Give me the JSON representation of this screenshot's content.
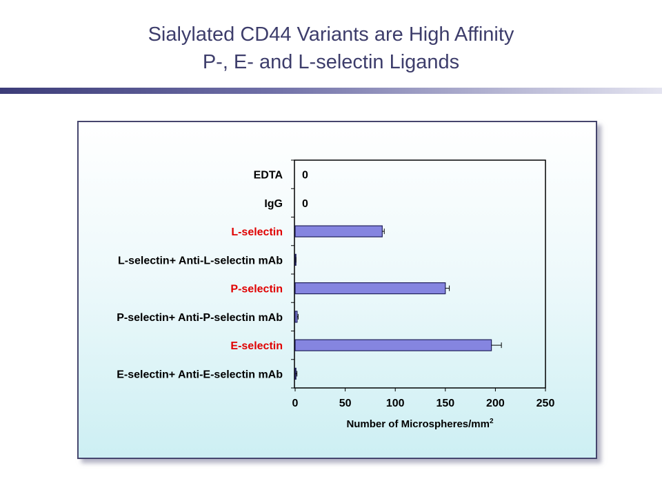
{
  "slide": {
    "title_line1": "Sialylated CD44 Variants are High Affinity",
    "title_line2": "P-, E- and L-selectin Ligands"
  },
  "colors": {
    "title": "#3d3d6b",
    "bar_fill": "#8585e0",
    "bar_stroke": "#20205a",
    "label_black": "#000000",
    "label_red": "#e00000"
  },
  "chart_data": {
    "type": "bar",
    "orientation": "horizontal",
    "categories": [
      {
        "label": "EDTA",
        "value": 0,
        "error": 0,
        "color": "black",
        "data_label": "0"
      },
      {
        "label": "IgG",
        "value": 0,
        "error": 0,
        "color": "black",
        "data_label": "0"
      },
      {
        "label": "L-selectin",
        "value": 87,
        "error": 2,
        "color": "red"
      },
      {
        "label": "L-selectin+ Anti-L-selectin mAb",
        "value": 0.5,
        "error": 0.3,
        "color": "black"
      },
      {
        "label": "P-selectin",
        "value": 150,
        "error": 4,
        "color": "red"
      },
      {
        "label": "P-selectin+ Anti-P-selectin mAb",
        "value": 2,
        "error": 1,
        "color": "black"
      },
      {
        "label": "E-selectin",
        "value": 196,
        "error": 10,
        "color": "red"
      },
      {
        "label": "E-selectin+ Anti-E-selectin mAb",
        "value": 0.3,
        "error": 1.5,
        "color": "black"
      }
    ],
    "xlabel": "Number of Microspheres/mm",
    "xlabel_superscript": "2",
    "xlim": [
      0,
      250
    ],
    "xticks": [
      "0",
      "50",
      "100",
      "150",
      "200",
      "250"
    ],
    "grid": false,
    "legend": "none"
  }
}
